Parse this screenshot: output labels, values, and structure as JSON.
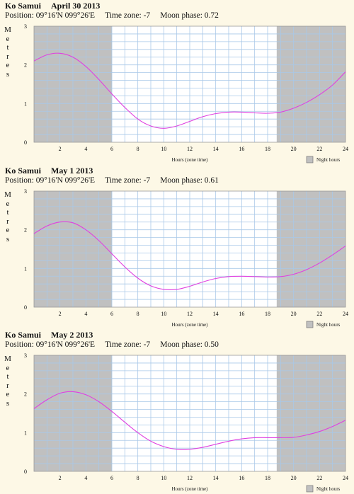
{
  "ylabel": "Metres",
  "xlabel": "Hours (zone time)",
  "legend_label": "Night hours",
  "colors": {
    "night": "#c0c0c0",
    "day": "#ffffff",
    "grid": "#a9c8e8",
    "curve": "#e040e0",
    "background": "#fdf8e6"
  },
  "chart_data": [
    {
      "type": "line",
      "location": "Ko Samui",
      "date": "April 30 2013",
      "position": "Position: 09°16'N 099°26'E",
      "timezone": "Time zone: -7",
      "moon": "Moon phase: 0.72",
      "xlim": [
        0,
        24
      ],
      "ylim": [
        0,
        3
      ],
      "x_ticks": [
        "2",
        "4",
        "6",
        "8",
        "10",
        "12",
        "14",
        "16",
        "18",
        "20",
        "22",
        "24"
      ],
      "y_ticks": [
        "0",
        "1",
        "2",
        "3"
      ],
      "night": [
        [
          0,
          6.0
        ],
        [
          18.7,
          24
        ]
      ],
      "x": [
        0,
        1,
        2,
        3,
        4,
        5,
        6,
        7,
        8,
        9,
        10,
        11,
        12,
        13,
        14,
        15,
        16,
        17,
        18,
        19,
        20,
        21,
        22,
        23,
        24
      ],
      "y": [
        2.1,
        2.26,
        2.3,
        2.2,
        1.96,
        1.62,
        1.25,
        0.9,
        0.6,
        0.42,
        0.36,
        0.42,
        0.54,
        0.66,
        0.74,
        0.78,
        0.78,
        0.76,
        0.75,
        0.78,
        0.88,
        1.03,
        1.23,
        1.48,
        1.82
      ]
    },
    {
      "type": "line",
      "location": "Ko Samui",
      "date": "May 1 2013",
      "position": "Position: 09°16'N 099°26'E",
      "timezone": "Time zone: -7",
      "moon": "Moon phase: 0.61",
      "xlim": [
        0,
        24
      ],
      "ylim": [
        0,
        3
      ],
      "x_ticks": [
        "2",
        "4",
        "6",
        "8",
        "10",
        "12",
        "14",
        "16",
        "18",
        "20",
        "22",
        "24"
      ],
      "y_ticks": [
        "0",
        "1",
        "2",
        "3"
      ],
      "night": [
        [
          0,
          6.0
        ],
        [
          18.7,
          24
        ]
      ],
      "x": [
        0,
        1,
        2,
        3,
        4,
        5,
        6,
        7,
        8,
        9,
        10,
        11,
        12,
        13,
        14,
        15,
        16,
        17,
        18,
        19,
        20,
        21,
        22,
        23,
        24
      ],
      "y": [
        1.9,
        2.1,
        2.2,
        2.18,
        2.0,
        1.72,
        1.38,
        1.04,
        0.75,
        0.55,
        0.46,
        0.46,
        0.54,
        0.65,
        0.74,
        0.79,
        0.8,
        0.79,
        0.78,
        0.79,
        0.85,
        0.97,
        1.14,
        1.35,
        1.58
      ]
    },
    {
      "type": "line",
      "location": "Ko Samui",
      "date": "May 2 2013",
      "position": "Position: 09°16'N 099°26'E",
      "timezone": "Time zone: -7",
      "moon": "Moon phase: 0.50",
      "xlim": [
        0,
        24
      ],
      "ylim": [
        0,
        3
      ],
      "x_ticks": [
        "2",
        "4",
        "6",
        "8",
        "10",
        "12",
        "14",
        "16",
        "18",
        "20",
        "22",
        "24"
      ],
      "y_ticks": [
        "0",
        "1",
        "2",
        "3"
      ],
      "night": [
        [
          0,
          6.0
        ],
        [
          18.7,
          24
        ]
      ],
      "x": [
        0,
        1,
        2,
        3,
        4,
        5,
        6,
        7,
        8,
        9,
        10,
        11,
        12,
        13,
        14,
        15,
        16,
        17,
        18,
        19,
        20,
        21,
        22,
        23,
        24
      ],
      "y": [
        1.62,
        1.85,
        2.02,
        2.06,
        1.98,
        1.8,
        1.55,
        1.27,
        1.0,
        0.78,
        0.64,
        0.57,
        0.57,
        0.62,
        0.7,
        0.78,
        0.84,
        0.87,
        0.87,
        0.87,
        0.88,
        0.94,
        1.03,
        1.16,
        1.32
      ]
    }
  ]
}
